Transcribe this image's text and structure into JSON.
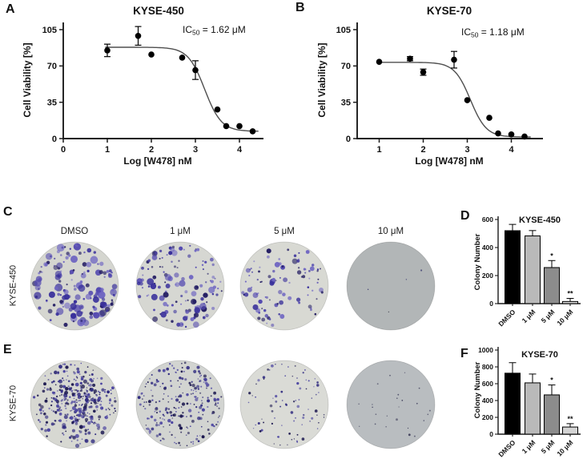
{
  "panels": {
    "A": {
      "letter": "A"
    },
    "B": {
      "letter": "B"
    },
    "C": {
      "letter": "C",
      "row_label": "KYSE-450"
    },
    "D": {
      "letter": "D"
    },
    "E": {
      "letter": "E",
      "row_label": "KYSE-70"
    },
    "F": {
      "letter": "F"
    }
  },
  "colony_assay": {
    "col_labels": [
      "DMSO",
      "1 μM",
      "5 μM",
      "10 μM"
    ],
    "rows": [
      {
        "panel": "C",
        "label": "KYSE-450",
        "wells": [
          {
            "condition": "DMSO",
            "fill": "#d5d6d0",
            "count": 160,
            "min_r": 1.1,
            "max_r": 5.0,
            "seed": 11,
            "cluster": false,
            "palette": [
              "#39309b",
              "#544ab0",
              "#241e63",
              "#6f66c2"
            ]
          },
          {
            "condition": "1 μM",
            "fill": "#d6d7d2",
            "count": 135,
            "min_r": 1.0,
            "max_r": 4.4,
            "seed": 22,
            "cluster": false,
            "palette": [
              "#39309b",
              "#544ab0",
              "#241e63",
              "#6f66c2"
            ]
          },
          {
            "condition": "5 μM",
            "fill": "#d8d9d3",
            "count": 95,
            "min_r": 1.0,
            "max_r": 3.6,
            "seed": 33,
            "cluster": false,
            "palette": [
              "#39309b",
              "#544ab0",
              "#241e63",
              "#6f66c2"
            ]
          },
          {
            "condition": "10 μM",
            "fill": "#b2b6b7",
            "count": 4,
            "min_r": 0.7,
            "max_r": 1.3,
            "seed": 44,
            "cluster": false,
            "palette": [
              "#4a4a55",
              "#3a3a70"
            ]
          }
        ]
      },
      {
        "panel": "E",
        "label": "KYSE-70",
        "wells": [
          {
            "condition": "DMSO",
            "fill": "#d7d8d2",
            "count": 390,
            "min_r": 0.8,
            "max_r": 2.6,
            "seed": 55,
            "cluster": true,
            "palette": [
              "#2f2a80",
              "#4a43a0",
              "#1d1950"
            ]
          },
          {
            "condition": "1 μM",
            "fill": "#d2d4d1",
            "count": 235,
            "min_r": 0.8,
            "max_r": 2.3,
            "seed": 66,
            "cluster": false,
            "palette": [
              "#2f2a80",
              "#4a43a0",
              "#1d1950"
            ]
          },
          {
            "condition": "5 μM",
            "fill": "#dadbd6",
            "count": 85,
            "min_r": 0.7,
            "max_r": 1.9,
            "seed": 77,
            "cluster": false,
            "palette": [
              "#2f2a80",
              "#4a43a0",
              "#1d1950"
            ]
          },
          {
            "condition": "10 μM",
            "fill": "#b9bdc0",
            "count": 24,
            "min_r": 0.6,
            "max_r": 1.5,
            "seed": 88,
            "cluster": false,
            "palette": [
              "#4c4c66",
              "#3c3c58"
            ]
          }
        ]
      }
    ]
  },
  "chart_data": [
    {
      "id": "A",
      "type": "scatter",
      "title": "KYSE-450",
      "annotation": {
        "pre": "IC",
        "sub": "50",
        "post": " = 1.62 μM"
      },
      "xlabel": "Log [W478] nM",
      "ylabel": "Cell Viability [%]",
      "xticks": [
        0,
        1,
        2,
        3,
        4
      ],
      "yticks": [
        0,
        35,
        70,
        105
      ],
      "xlim": [
        0,
        4.6
      ],
      "ylim": [
        0,
        113
      ],
      "grid": false,
      "points": {
        "x": [
          1,
          1.7,
          2,
          2.7,
          3,
          3.5,
          3.7,
          4,
          4.3
        ],
        "y": [
          85,
          99,
          81,
          78,
          66,
          28,
          12,
          12,
          7
        ],
        "yerr": [
          6,
          9,
          0,
          0,
          9,
          0,
          0,
          0,
          0
        ]
      },
      "fit": {
        "top": 88,
        "bottom": 7,
        "logIC50": 3.21,
        "hill": 2.3,
        "range": [
          0.95,
          4.45
        ]
      }
    },
    {
      "id": "B",
      "type": "scatter",
      "title": "KYSE-70",
      "annotation": {
        "pre": "IC",
        "sub": "50",
        "post": " = 1.18 μM"
      },
      "xlabel": "Log [W478] nM",
      "ylabel": "Cell Viability [%]",
      "xticks": [
        1,
        2,
        3,
        4
      ],
      "yticks": [
        0,
        35,
        70,
        105
      ],
      "xlim": [
        0.5,
        4.65
      ],
      "ylim": [
        0,
        113
      ],
      "grid": false,
      "points": {
        "x": [
          1,
          1.7,
          2,
          2.7,
          3,
          3.5,
          3.7,
          4,
          4.3
        ],
        "y": [
          74,
          77,
          64,
          76,
          37,
          20,
          5,
          4,
          2
        ],
        "yerr": [
          0,
          2,
          3,
          8,
          0,
          0,
          0,
          0,
          0
        ]
      },
      "fit": {
        "top": 73.5,
        "bottom": 1.5,
        "logIC50": 3.07,
        "hill": 2.4,
        "range": [
          1.0,
          4.45
        ]
      }
    },
    {
      "id": "D",
      "type": "bar",
      "title": "KYSE-450",
      "ylabel": "Colony Number",
      "categories": [
        "DMSO",
        "1 μM",
        "5 μM",
        "10 μM"
      ],
      "values": [
        520,
        483,
        257,
        15
      ],
      "errors": [
        45,
        38,
        50,
        22
      ],
      "sig": [
        "",
        "",
        "*",
        "**"
      ],
      "bar_colors": [
        "#000000",
        "#b9b9b9",
        "#8c8c8c",
        "#d8d8d8"
      ],
      "ylim": [
        0,
        600
      ],
      "yticks": [
        0,
        200,
        400,
        600
      ],
      "grid": false
    },
    {
      "id": "F",
      "type": "bar",
      "title": "KYSE-70",
      "ylabel": "Colony Number",
      "categories": [
        "DMSO",
        "1 μM",
        "5 μM",
        "10 μM"
      ],
      "values": [
        725,
        610,
        467,
        85
      ],
      "errors": [
        125,
        105,
        118,
        40
      ],
      "sig": [
        "",
        "",
        "*",
        "**"
      ],
      "bar_colors": [
        "#000000",
        "#b9b9b9",
        "#8c8c8c",
        "#d4d4d4"
      ],
      "ylim": [
        0,
        1000
      ],
      "yticks": [
        0,
        200,
        400,
        600,
        800,
        1000
      ],
      "grid": false
    }
  ],
  "colors": {
    "curve": "#4f4f4f",
    "point": "#000000",
    "axis": "#1b1b1b",
    "text": "#111111"
  }
}
